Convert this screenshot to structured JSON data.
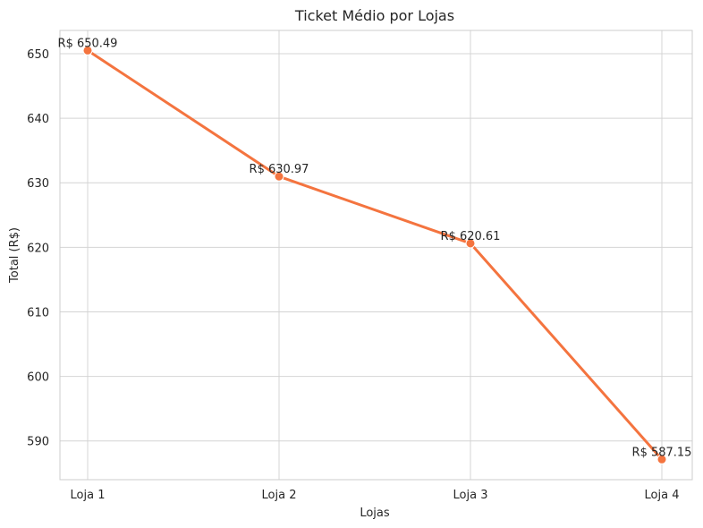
{
  "chart_data": {
    "type": "line",
    "title": "Ticket Médio por Lojas",
    "xlabel": "Lojas",
    "ylabel": "Total (R$)",
    "categories": [
      "Loja 1",
      "Loja 2",
      "Loja 3",
      "Loja 4"
    ],
    "series": [
      {
        "values": [
          650.49,
          630.97,
          620.61,
          587.15
        ],
        "color": "#f4743f"
      }
    ],
    "data_labels": [
      "R$ 650.49",
      "R$ 630.97",
      "R$ 620.61",
      "R$ 587.15"
    ],
    "yticks": [
      590,
      600,
      610,
      620,
      630,
      640,
      650
    ],
    "ylim": [
      584,
      653.6
    ],
    "grid": true,
    "legend": "none"
  }
}
